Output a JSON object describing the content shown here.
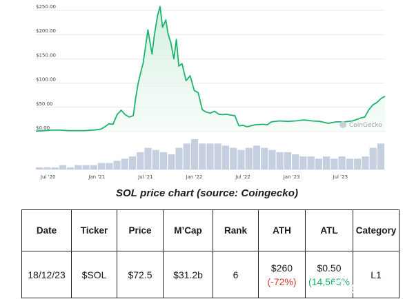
{
  "caption": "SOL price chart (source: Coingecko)",
  "chart_data": {
    "type": "area",
    "title": "",
    "xlabel": "",
    "ylabel": "",
    "x_ticks": [
      "Jul '20",
      "Jan '21",
      "Jul '21",
      "Jan '22",
      "Jul '22",
      "Jan '23",
      "Jul '23"
    ],
    "y_ticks": [
      "$0.00",
      "$50.00",
      "$100.00",
      "$150.00",
      "$200.00",
      "$250.00"
    ],
    "ylim": [
      0,
      250
    ],
    "xlim_months": [
      0,
      43
    ],
    "line_color": "#1cb36b",
    "fill_color": "#d9f3e2",
    "volume_color": "#c6cfdf",
    "grid": true,
    "series": [
      {
        "x": [
          0,
          1,
          2,
          3,
          4,
          5,
          6,
          7,
          7.5,
          8,
          8.5,
          9,
          9.5,
          10,
          10.5,
          11,
          11.5,
          12,
          12.3,
          12.6,
          13,
          13.2,
          13.5,
          13.8,
          14,
          14.3,
          14.6,
          15,
          15.3,
          15.6,
          16,
          16.3,
          16.6,
          17,
          17.3,
          17.6,
          18,
          18.5,
          19,
          19.5,
          20,
          20.5,
          21,
          21.5,
          22,
          22.5,
          23,
          23.5,
          24,
          24.5,
          25,
          25.5,
          26,
          27,
          28,
          28.5,
          29,
          30,
          31,
          32,
          33,
          34,
          35,
          36,
          37,
          38,
          39,
          39.5,
          40,
          40.5,
          41,
          41.5,
          42,
          42.5,
          43
        ],
        "values": [
          1,
          2,
          3,
          3,
          2,
          2,
          2,
          3,
          4,
          5,
          10,
          16,
          15,
          35,
          44,
          35,
          30,
          33,
          70,
          100,
          128,
          140,
          175,
          210,
          190,
          160,
          200,
          240,
          258,
          215,
          230,
          200,
          185,
          150,
          190,
          135,
          140,
          105,
          115,
          85,
          80,
          45,
          40,
          38,
          42,
          36,
          35,
          36,
          34,
          33,
          12,
          13,
          10,
          14,
          15,
          14,
          20,
          22,
          21,
          22,
          24,
          22,
          21,
          17,
          20,
          20,
          22,
          25,
          28,
          30,
          45,
          55,
          60,
          68,
          73
        ]
      }
    ],
    "volume": [
      1,
      1,
      1,
      2,
      1,
      2,
      2,
      2,
      3,
      3,
      4,
      5,
      6,
      8,
      10,
      9,
      8,
      7,
      10,
      12,
      14,
      12,
      12,
      12,
      11,
      10,
      9,
      10,
      11,
      10,
      9,
      8,
      8,
      7,
      6,
      6,
      5,
      6,
      5,
      6,
      5,
      5,
      6,
      10,
      12
    ]
  },
  "watermark": "CoinGecko",
  "table": {
    "headers": [
      "Date",
      "Ticker",
      "Price",
      "M’Cap",
      "Rank",
      "ATH",
      "ATL",
      "Category"
    ],
    "row": {
      "date": "18/12/23",
      "ticker": "$SOL",
      "price": "$72.5",
      "mcap": "$31.2b",
      "rank": "6",
      "ath_value": "$260",
      "ath_change": "(-72%)",
      "atl_value": "$0.50",
      "atl_change": "(14,565%",
      "category": "L1"
    }
  },
  "brand_watermark": "金色财经"
}
